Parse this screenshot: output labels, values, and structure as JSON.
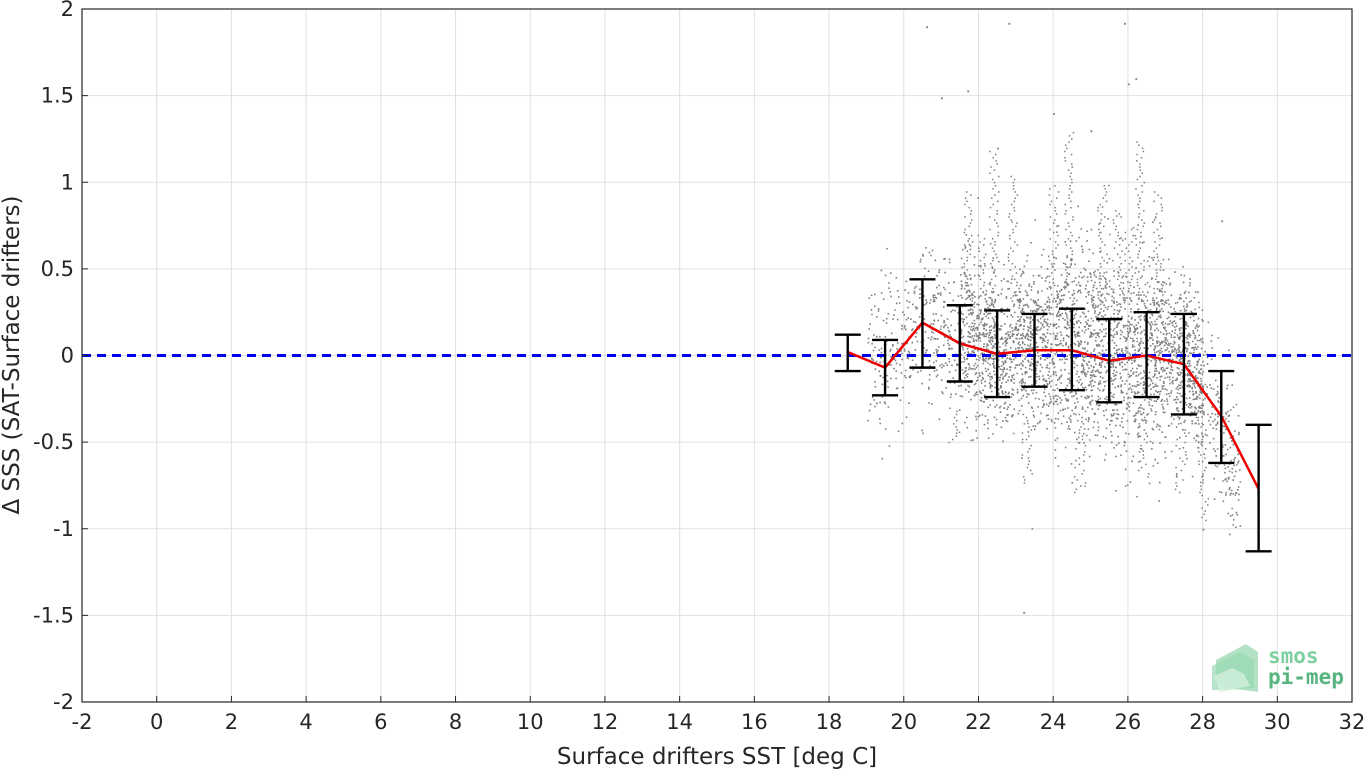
{
  "chart_data": {
    "type": "scatter",
    "title": "",
    "xlabel": "Surface drifters SST [deg C]",
    "ylabel": "Δ SSS (SAT-Surface drifters)",
    "xlim": [
      -2,
      32
    ],
    "ylim": [
      -2,
      2
    ],
    "xticks": [
      -2,
      0,
      2,
      4,
      6,
      8,
      10,
      12,
      14,
      16,
      18,
      20,
      22,
      24,
      26,
      28,
      30,
      32
    ],
    "yticks": [
      2,
      1.5,
      1,
      0.5,
      0,
      -0.5,
      -1,
      -1.5,
      -2
    ],
    "xtick_labels": [
      "-2",
      "0",
      "2",
      "4",
      "6",
      "8",
      "10",
      "12",
      "14",
      "16",
      "18",
      "20",
      "22",
      "24",
      "26",
      "28",
      "30",
      "32"
    ],
    "ytick_labels": [
      "2",
      "1.5",
      "1",
      "0.5",
      "0",
      "-0.5",
      "-1",
      "-1.5",
      "-2"
    ],
    "grid": true,
    "reference_line": {
      "y": 0,
      "style": "dashed",
      "color": "#0000ee"
    },
    "scatter_cloud": {
      "color": "#808080",
      "x_range": [
        18.8,
        29.0
      ],
      "y_range": [
        -1.48,
        1.92
      ],
      "core_y_range": [
        -0.35,
        0.45
      ],
      "outliers": [
        [
          20.6,
          1.9
        ],
        [
          21.0,
          1.49
        ],
        [
          22.8,
          1.92
        ],
        [
          25.9,
          1.92
        ],
        [
          21.7,
          1.53
        ],
        [
          26.2,
          1.6
        ],
        [
          23.2,
          -1.48
        ],
        [
          26.0,
          1.57
        ],
        [
          28.5,
          0.78
        ],
        [
          28.0,
          -1.0
        ],
        [
          22.5,
          1.2
        ],
        [
          24.0,
          1.4
        ],
        [
          25.0,
          1.3
        ]
      ]
    },
    "series": [
      {
        "name": "",
        "type": "line",
        "color": "#ee0000",
        "x": [
          18.5,
          19.5,
          20.5,
          21.5,
          22.5,
          23.5,
          24.5,
          25.5,
          26.5,
          27.5,
          28.5,
          29.5
        ],
        "y": [
          0.02,
          -0.07,
          0.19,
          0.07,
          0.01,
          0.03,
          0.03,
          -0.03,
          0.0,
          -0.05,
          -0.35,
          -0.77
        ]
      },
      {
        "name": "",
        "type": "errorbar",
        "color": "#000000",
        "x": [
          18.5,
          19.5,
          20.5,
          21.5,
          22.5,
          23.5,
          24.5,
          25.5,
          26.5,
          27.5,
          28.5,
          29.5
        ],
        "lower": [
          -0.09,
          -0.23,
          -0.07,
          -0.15,
          -0.24,
          -0.18,
          -0.2,
          -0.27,
          -0.24,
          -0.34,
          -0.62,
          -1.13
        ],
        "upper": [
          0.12,
          0.09,
          0.44,
          0.29,
          0.26,
          0.24,
          0.27,
          0.21,
          0.25,
          0.24,
          -0.09,
          -0.4
        ]
      }
    ]
  },
  "logo": {
    "line1": "smos",
    "line2": "pi-mep",
    "color1": "#7fd0a0",
    "color2": "#56b57e"
  }
}
